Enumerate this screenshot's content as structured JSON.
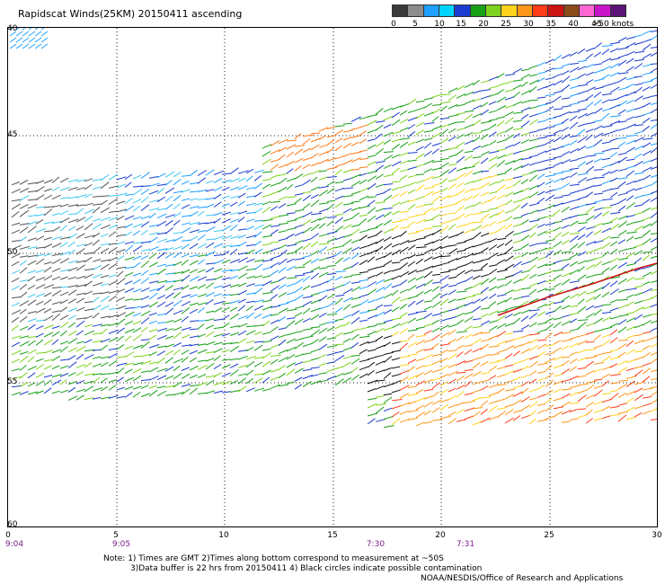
{
  "title": "Rapidscat Winds(25KM) 20150411 ascending",
  "legend": {
    "colors": [
      "#3a3a3a",
      "#8c8c8c",
      "#1f9fff",
      "#00d4ff",
      "#1c3ccf",
      "#19a019",
      "#7fd21e",
      "#ffd21e",
      "#ff9619",
      "#ff3c19",
      "#cc1414",
      "#8b4a1a",
      "#ff66d2",
      "#c814c8",
      "#5a1478"
    ],
    "labels": [
      "0",
      "5",
      "10",
      "15",
      "20",
      "25",
      "30",
      "35",
      "40",
      "45",
      ">50 knots"
    ]
  },
  "y_labels": [
    "40",
    "45",
    "50",
    "55",
    "60"
  ],
  "x_labels": [
    "0",
    "5",
    "10",
    "15",
    "20",
    "25",
    "30"
  ],
  "time_labels": [
    "9:04",
    "9:05",
    "7:30",
    "7:31"
  ],
  "notes": {
    "line1": "Note: 1) Times are GMT 2)Times along bottom correspond to measurement at ~50S",
    "line2": "3)Data buffer is 22 hrs from 20150411 4) Black circles indicate possible contamination",
    "credit": "NOAA/NESDIS/Office of Research and Applications"
  },
  "map": {
    "lat_range": [
      "40",
      "60"
    ],
    "lon_range": [
      "0",
      "30"
    ],
    "gridlines": "dotted"
  }
}
